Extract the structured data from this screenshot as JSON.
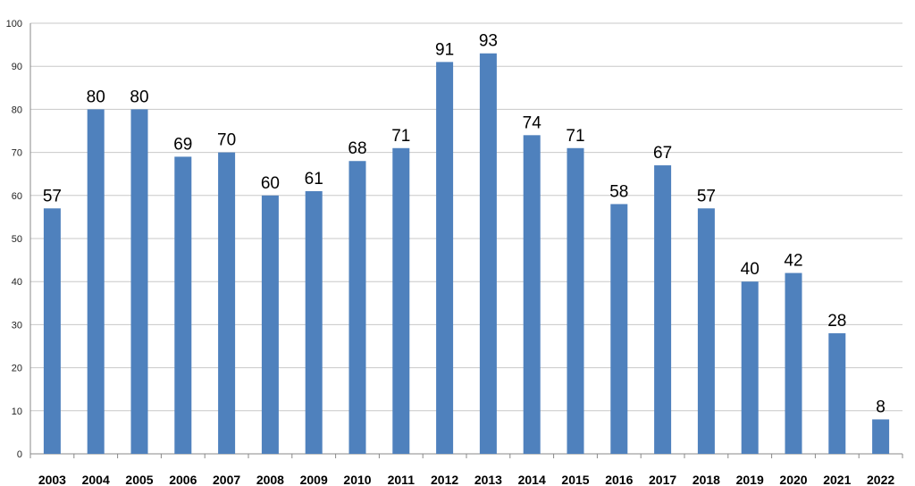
{
  "chart_data": {
    "type": "bar",
    "title": "",
    "xlabel": "",
    "ylabel": "",
    "categories": [
      "2003",
      "2004",
      "2005",
      "2006",
      "2007",
      "2008",
      "2009",
      "2010",
      "2011",
      "2012",
      "2013",
      "2014",
      "2015",
      "2016",
      "2017",
      "2018",
      "2019",
      "2020",
      "2021",
      "2022"
    ],
    "series": [
      {
        "values": [
          57,
          80,
          80,
          69,
          70,
          60,
          61,
          68,
          71,
          91,
          93,
          74,
          71,
          58,
          67,
          57,
          40,
          42,
          28,
          8
        ]
      }
    ],
    "ylim": [
      0,
      100
    ],
    "yticks": [
      0,
      10,
      20,
      30,
      40,
      50,
      60,
      70,
      80,
      90,
      100
    ],
    "grid": true,
    "legend": "none",
    "colors": {
      "bar": "#4F81BD",
      "grid": "#C8C8C8",
      "axis": "#888888"
    }
  }
}
